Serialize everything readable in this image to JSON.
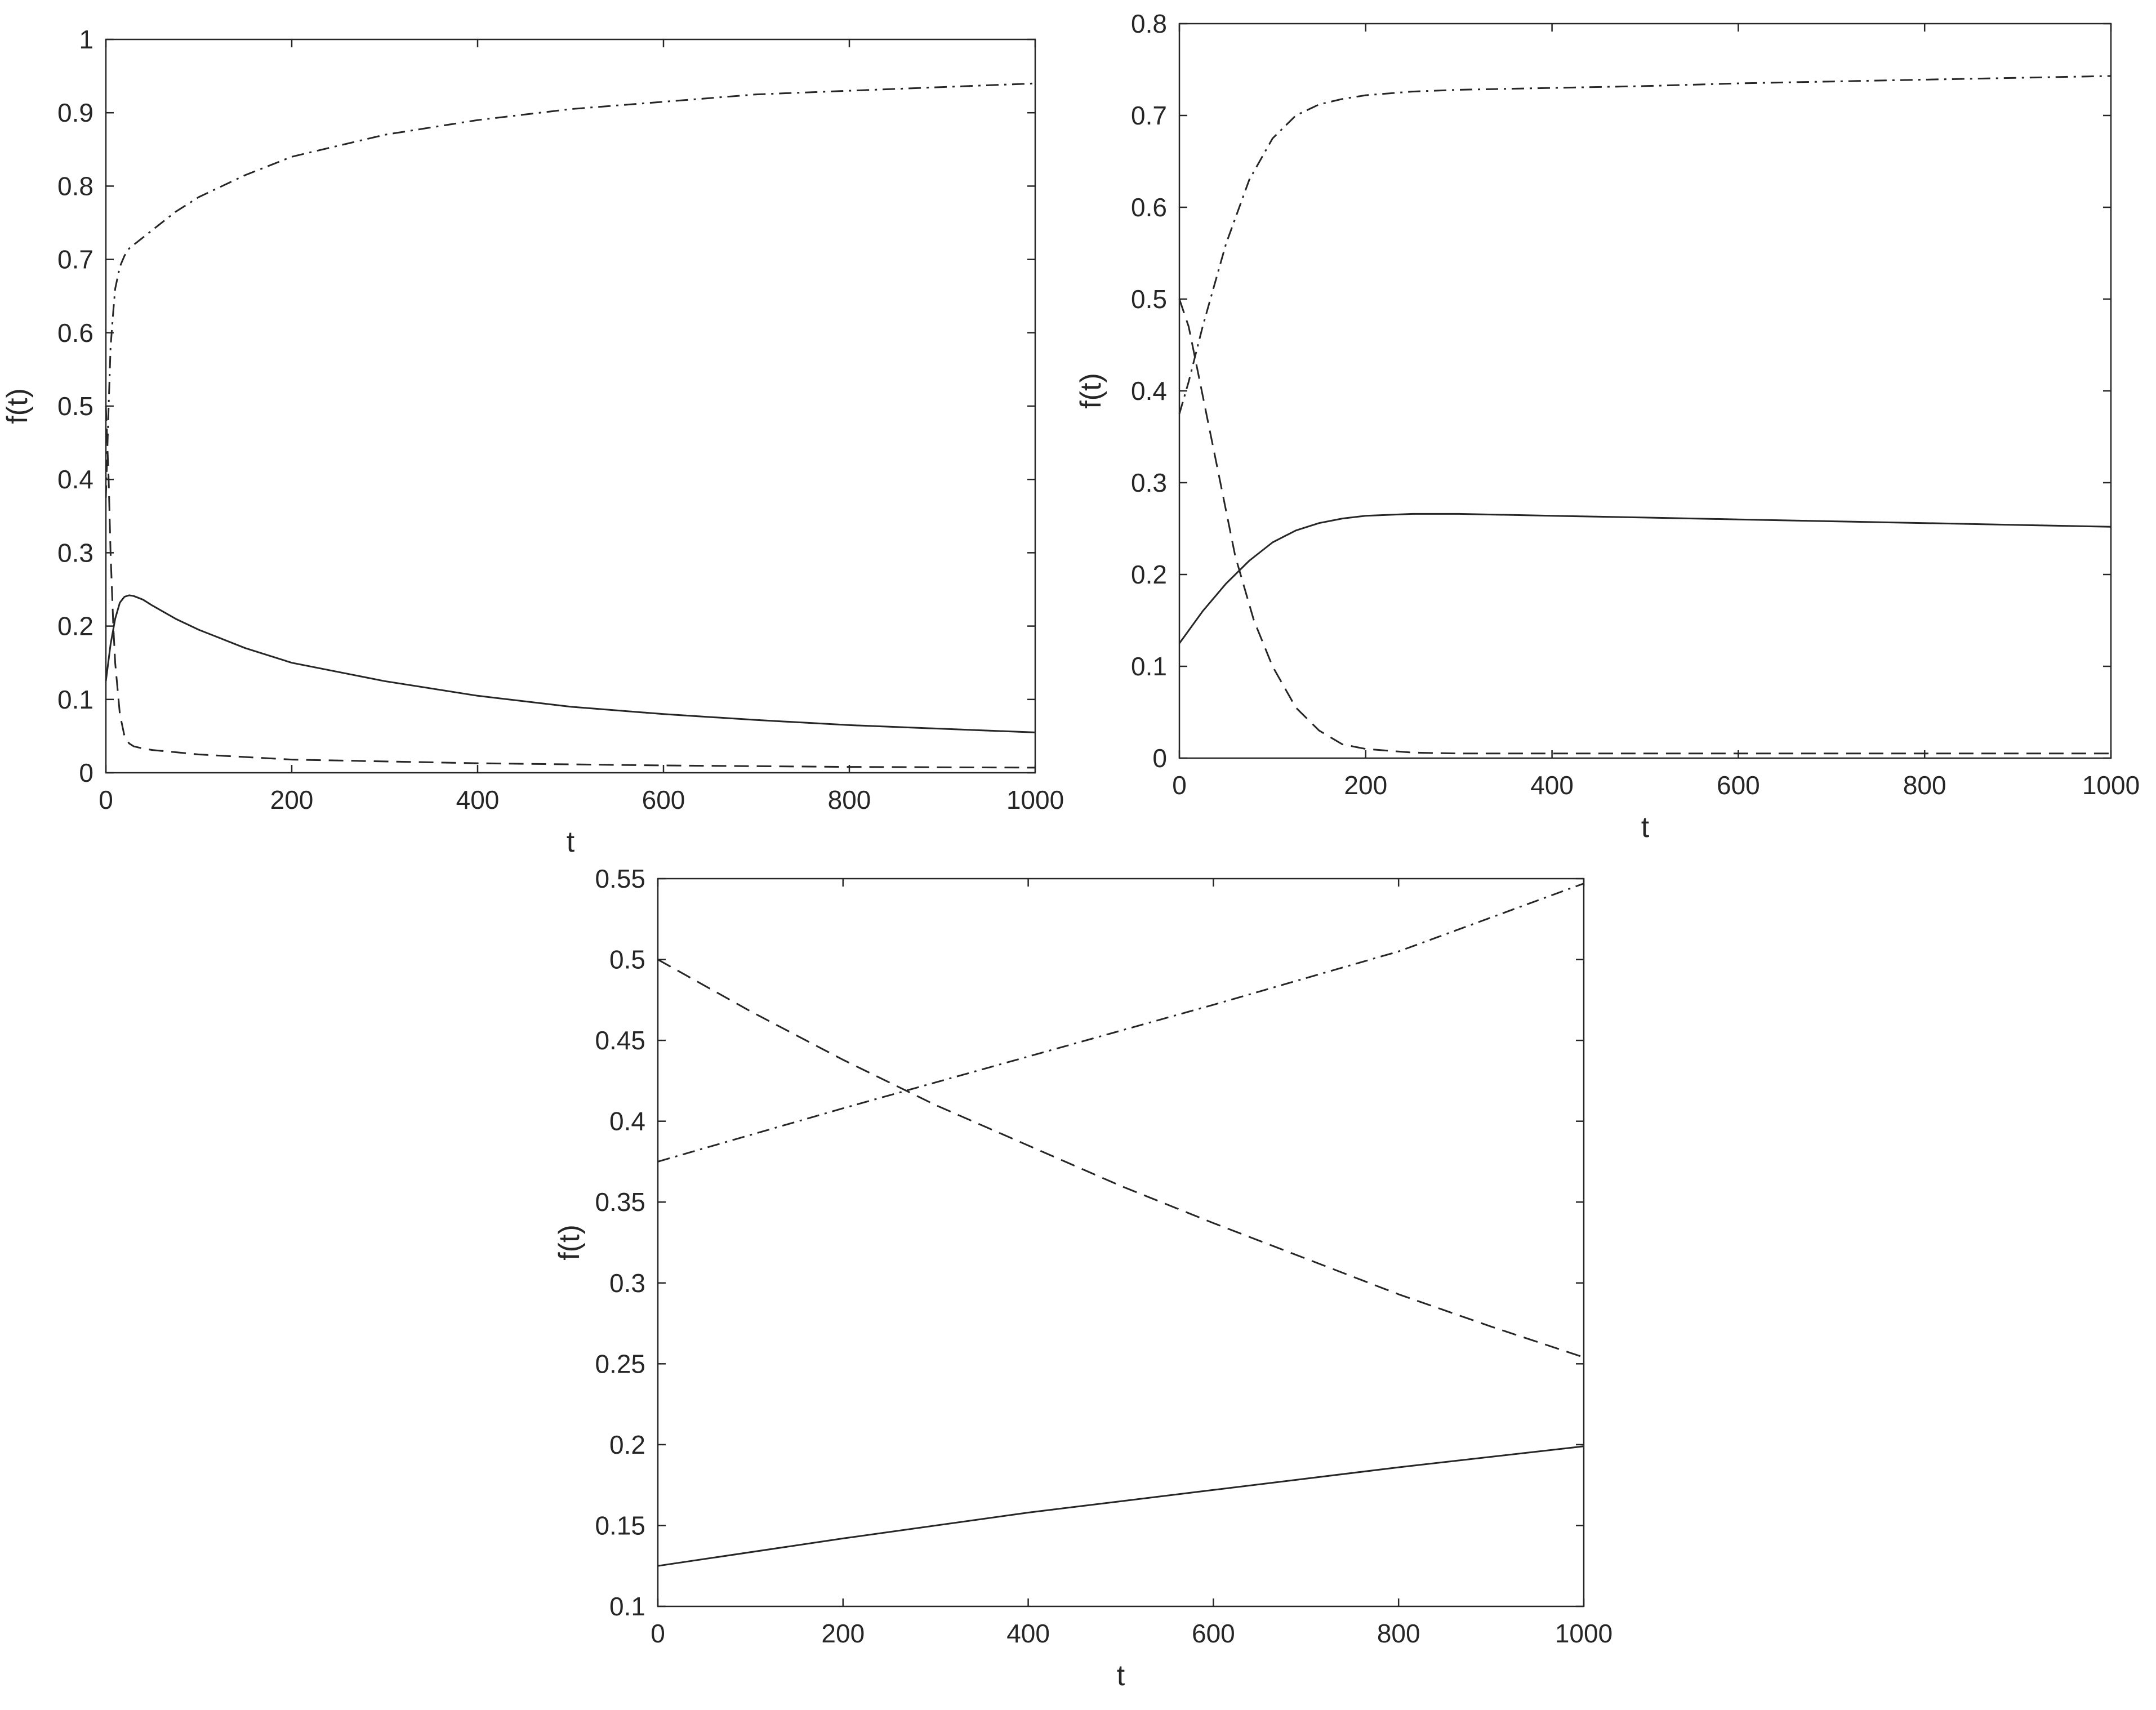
{
  "chart_data": [
    {
      "type": "line",
      "xlabel": "t",
      "ylabel": "f(t)",
      "xlim": [
        0,
        1000
      ],
      "ylim": [
        0,
        1
      ],
      "xticks": [
        "0",
        "200",
        "400",
        "600",
        "800",
        "1000"
      ],
      "yticks": [
        "0",
        "0.1",
        "0.2",
        "0.3",
        "0.4",
        "0.5",
        "0.6",
        "0.7",
        "0.8",
        "0.9",
        "1"
      ],
      "grid": false,
      "legend": "none",
      "series": [
        {
          "style": "solid",
          "x": [
            0,
            5,
            10,
            15,
            20,
            25,
            30,
            40,
            50,
            75,
            100,
            150,
            200,
            300,
            400,
            500,
            600,
            700,
            800,
            900,
            1000
          ],
          "y": [
            0.125,
            0.175,
            0.21,
            0.232,
            0.24,
            0.242,
            0.241,
            0.236,
            0.228,
            0.21,
            0.195,
            0.17,
            0.15,
            0.125,
            0.105,
            0.09,
            0.08,
            0.072,
            0.065,
            0.06,
            0.055
          ]
        },
        {
          "style": "dashed",
          "x": [
            0,
            3,
            5,
            8,
            10,
            15,
            20,
            25,
            30,
            40,
            50,
            75,
            100,
            200,
            400,
            600,
            800,
            1000
          ],
          "y": [
            0.5,
            0.4,
            0.3,
            0.2,
            0.15,
            0.08,
            0.05,
            0.04,
            0.036,
            0.033,
            0.031,
            0.028,
            0.025,
            0.018,
            0.013,
            0.01,
            0.008,
            0.007
          ]
        },
        {
          "style": "dashdot",
          "x": [
            0,
            3,
            5,
            8,
            10,
            15,
            20,
            25,
            30,
            50,
            75,
            100,
            150,
            200,
            300,
            400,
            500,
            600,
            700,
            800,
            900,
            1000
          ],
          "y": [
            0.375,
            0.5,
            0.58,
            0.63,
            0.66,
            0.69,
            0.705,
            0.715,
            0.72,
            0.74,
            0.765,
            0.785,
            0.815,
            0.84,
            0.87,
            0.89,
            0.905,
            0.915,
            0.925,
            0.93,
            0.935,
            0.94
          ]
        }
      ]
    },
    {
      "type": "line",
      "xlabel": "t",
      "ylabel": "f(t)",
      "xlim": [
        0,
        1000
      ],
      "ylim": [
        0,
        0.8
      ],
      "xticks": [
        "0",
        "200",
        "400",
        "600",
        "800",
        "1000"
      ],
      "yticks": [
        "0",
        "0.1",
        "0.2",
        "0.3",
        "0.4",
        "0.5",
        "0.6",
        "0.7",
        "0.8"
      ],
      "grid": false,
      "legend": "none",
      "series": [
        {
          "style": "solid",
          "x": [
            0,
            25,
            50,
            75,
            100,
            125,
            150,
            175,
            200,
            250,
            300,
            400,
            500,
            600,
            700,
            800,
            900,
            1000
          ],
          "y": [
            0.125,
            0.16,
            0.19,
            0.215,
            0.235,
            0.248,
            0.256,
            0.261,
            0.264,
            0.266,
            0.266,
            0.264,
            0.262,
            0.26,
            0.258,
            0.256,
            0.254,
            0.252
          ]
        },
        {
          "style": "dashed",
          "x": [
            0,
            10,
            20,
            30,
            40,
            50,
            60,
            80,
            100,
            125,
            150,
            175,
            200,
            250,
            300,
            400,
            600,
            800,
            1000
          ],
          "y": [
            0.5,
            0.47,
            0.42,
            0.37,
            0.32,
            0.27,
            0.22,
            0.15,
            0.1,
            0.055,
            0.03,
            0.015,
            0.01,
            0.006,
            0.005,
            0.005,
            0.005,
            0.005,
            0.005
          ]
        },
        {
          "style": "dashdot",
          "x": [
            0,
            10,
            25,
            50,
            75,
            100,
            125,
            150,
            175,
            200,
            250,
            300,
            400,
            500,
            600,
            700,
            800,
            900,
            1000
          ],
          "y": [
            0.375,
            0.41,
            0.47,
            0.56,
            0.63,
            0.675,
            0.7,
            0.712,
            0.718,
            0.722,
            0.726,
            0.728,
            0.73,
            0.732,
            0.735,
            0.737,
            0.739,
            0.741,
            0.743
          ]
        }
      ]
    },
    {
      "type": "line",
      "xlabel": "t",
      "ylabel": "f(t)",
      "xlim": [
        0,
        1000
      ],
      "ylim": [
        0.1,
        0.55
      ],
      "xticks": [
        "0",
        "200",
        "400",
        "600",
        "800",
        "1000"
      ],
      "yticks": [
        "0.1",
        "0.15",
        "0.2",
        "0.25",
        "0.3",
        "0.35",
        "0.4",
        "0.45",
        "0.5",
        "0.55"
      ],
      "grid": false,
      "legend": "none",
      "series": [
        {
          "style": "solid",
          "x": [
            0,
            200,
            400,
            600,
            800,
            1000
          ],
          "y": [
            0.125,
            0.142,
            0.158,
            0.172,
            0.186,
            0.199
          ]
        },
        {
          "style": "dashed",
          "x": [
            0,
            100,
            200,
            300,
            400,
            500,
            600,
            700,
            800,
            900,
            1000
          ],
          "y": [
            0.5,
            0.468,
            0.438,
            0.41,
            0.385,
            0.36,
            0.337,
            0.315,
            0.293,
            0.273,
            0.254
          ]
        },
        {
          "style": "dashdot",
          "x": [
            0,
            200,
            400,
            600,
            800,
            1000
          ],
          "y": [
            0.375,
            0.408,
            0.44,
            0.472,
            0.505,
            0.547
          ]
        }
      ]
    }
  ]
}
